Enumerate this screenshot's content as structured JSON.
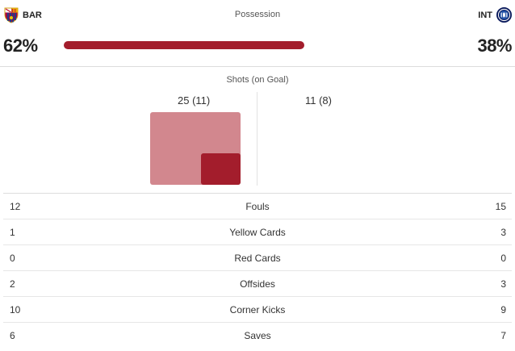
{
  "teams": {
    "home": {
      "abbr": "BAR",
      "crest": "barcelona-crest-icon",
      "possession": "62%"
    },
    "away": {
      "abbr": "INT",
      "crest": "inter-crest-icon",
      "possession": "38%"
    }
  },
  "possession": {
    "title": "Possession",
    "home_fraction": 0.62
  },
  "shots": {
    "title": "Shots (on Goal)",
    "home_label": "25 (11)",
    "away_label": "11 (8)",
    "home_total": 25,
    "home_on_goal": 11,
    "away_total": 11,
    "away_on_goal": 8
  },
  "colors": {
    "accent": "#a31d2c",
    "shots_total": "#d2878e"
  },
  "stats": [
    {
      "home": "12",
      "label": "Fouls",
      "away": "15"
    },
    {
      "home": "1",
      "label": "Yellow Cards",
      "away": "3"
    },
    {
      "home": "0",
      "label": "Red Cards",
      "away": "0"
    },
    {
      "home": "2",
      "label": "Offsides",
      "away": "3"
    },
    {
      "home": "10",
      "label": "Corner Kicks",
      "away": "9"
    },
    {
      "home": "6",
      "label": "Saves",
      "away": "7"
    }
  ]
}
